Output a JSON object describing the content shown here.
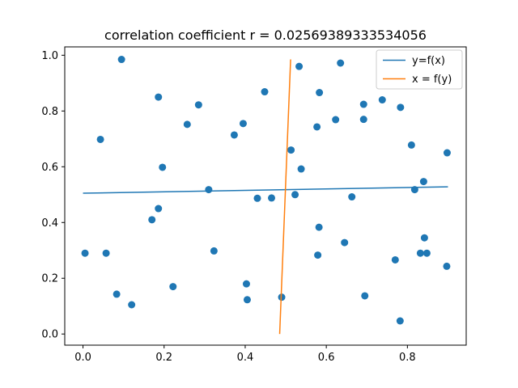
{
  "chart_data": {
    "type": "scatter",
    "title": "correlation coefficient r = 0.02569389333534056",
    "xlabel": "",
    "ylabel": "",
    "xlim": [
      -0.045,
      0.945
    ],
    "ylim": [
      -0.04,
      1.03
    ],
    "xticks": [
      0.0,
      0.2,
      0.4,
      0.6,
      0.8
    ],
    "xtick_labels": [
      "0.0",
      "0.2",
      "0.4",
      "0.6",
      "0.8"
    ],
    "yticks": [
      0.0,
      0.2,
      0.4,
      0.6,
      0.8,
      1.0
    ],
    "ytick_labels": [
      "0.0",
      "0.2",
      "0.4",
      "0.6",
      "0.8",
      "1.0"
    ],
    "grid": false,
    "legend_position": "top-right",
    "points": {
      "color": "#1f77b4",
      "x": [
        0.005,
        0.043,
        0.057,
        0.083,
        0.095,
        0.12,
        0.17,
        0.186,
        0.186,
        0.196,
        0.222,
        0.257,
        0.285,
        0.31,
        0.323,
        0.373,
        0.395,
        0.403,
        0.405,
        0.43,
        0.448,
        0.465,
        0.49,
        0.513,
        0.523,
        0.533,
        0.538,
        0.577,
        0.579,
        0.582,
        0.583,
        0.623,
        0.635,
        0.645,
        0.663,
        0.692,
        0.692,
        0.695,
        0.738,
        0.77,
        0.782,
        0.783,
        0.81,
        0.818,
        0.832,
        0.84,
        0.842,
        0.848,
        0.897,
        0.898
      ],
      "y": [
        0.29,
        0.698,
        0.29,
        0.143,
        0.985,
        0.105,
        0.41,
        0.45,
        0.85,
        0.598,
        0.17,
        0.752,
        0.822,
        0.518,
        0.298,
        0.714,
        0.755,
        0.18,
        0.123,
        0.487,
        0.869,
        0.488,
        0.132,
        0.66,
        0.5,
        0.96,
        0.592,
        0.743,
        0.283,
        0.383,
        0.866,
        0.769,
        0.972,
        0.328,
        0.492,
        0.77,
        0.824,
        0.137,
        0.84,
        0.266,
        0.047,
        0.813,
        0.678,
        0.518,
        0.29,
        0.547,
        0.345,
        0.29,
        0.243,
        0.65
      ]
    },
    "series": [
      {
        "name": "y=f(x)",
        "color": "#1f77b4",
        "x": [
          0.0,
          0.9
        ],
        "y": [
          0.505,
          0.528
        ]
      },
      {
        "name": "x = f(y)",
        "color": "#ff7f0e",
        "x": [
          0.485,
          0.512
        ],
        "y": [
          0.0,
          0.985
        ]
      }
    ]
  }
}
